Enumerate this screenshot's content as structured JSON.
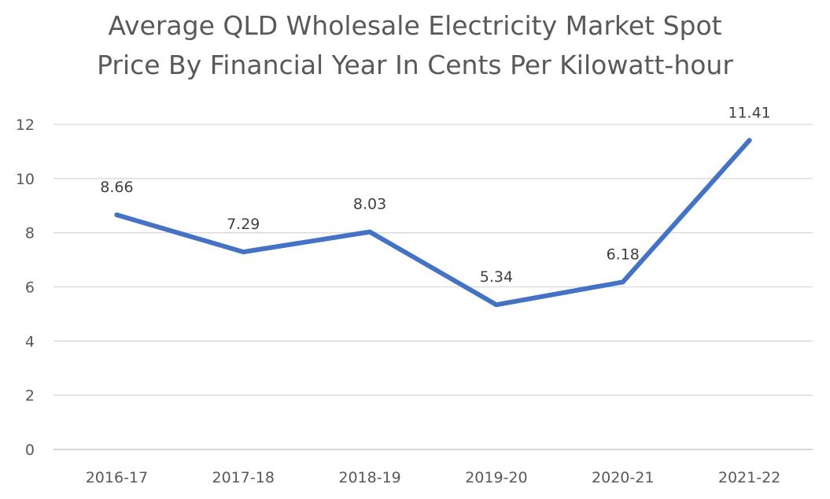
{
  "chart_data": {
    "type": "line",
    "title_line1": "Average QLD Wholesale Electricity Market Spot",
    "title_line2": "Price By Financial Year In Cents Per Kilowatt-hour",
    "categories": [
      "2016-17",
      "2017-18",
      "2018-19",
      "2019-20",
      "2020-21",
      "2021-22"
    ],
    "series": [
      {
        "values": [
          8.66,
          7.29,
          8.03,
          5.34,
          6.18,
          11.41
        ],
        "labels": [
          "8.66",
          "7.29",
          "8.03",
          "5.34",
          "6.18",
          "11.41"
        ],
        "color": "#4472C4"
      }
    ],
    "ylim": [
      0,
      12
    ],
    "yticks": [
      "0",
      "2",
      "4",
      "6",
      "8",
      "10",
      "12"
    ],
    "grid": true,
    "gridColor": "#D9D9D9",
    "axisColor": "#BFBFBF",
    "legend": "none"
  }
}
